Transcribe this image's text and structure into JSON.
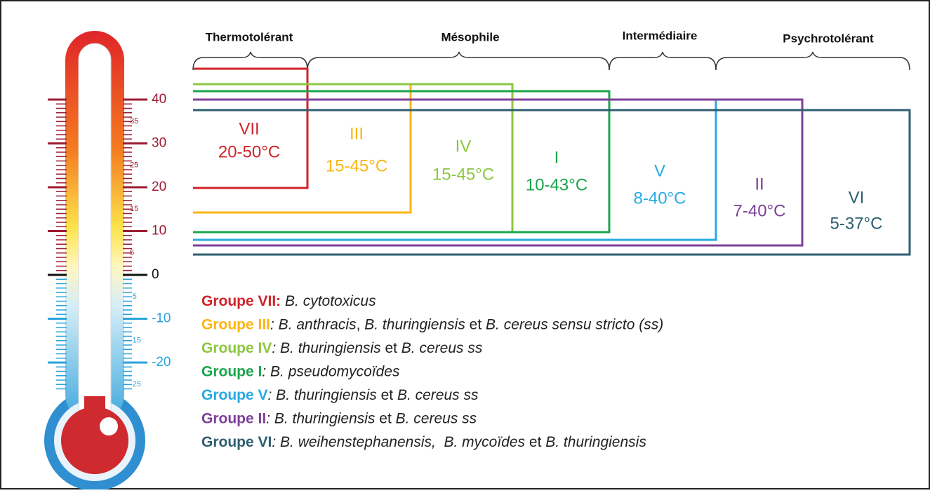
{
  "header": {
    "categories": [
      "Thermotolérant",
      "Mésophile",
      "Intermédiaire",
      "Psychrotolérant"
    ]
  },
  "thermometer": {
    "major_labels": [
      "40",
      "30",
      "20",
      "10",
      "0",
      "-10",
      "-20"
    ],
    "minor_labels": [
      "35",
      "25",
      "15",
      "5",
      "-5",
      "-15",
      "-25"
    ]
  },
  "groups": [
    {
      "numeral": "VII",
      "range": "20-50°C",
      "color": "#d2232a"
    },
    {
      "numeral": "III",
      "range": "15-45°C",
      "color": "#fbb515"
    },
    {
      "numeral": "IV",
      "range": "15-45°C",
      "color": "#8dc63f"
    },
    {
      "numeral": "I",
      "range": "10-43°C",
      "color": "#1aa54b"
    },
    {
      "numeral": "V",
      "range": "8-40°C",
      "color": "#27aae1"
    },
    {
      "numeral": "II",
      "range": "7-40°C",
      "color": "#7e3f98"
    },
    {
      "numeral": "VI",
      "range": "5-37°C",
      "color": "#2e5e70"
    }
  ],
  "legend": [
    {
      "label": "Groupe VII:",
      "segments": [
        {
          "text": " B. cytotoxicus",
          "italic": true
        }
      ]
    },
    {
      "label": "Groupe III",
      "segments": [
        {
          "text": ": B. anthracis",
          "italic": true
        },
        {
          "text": ", ",
          "italic": false
        },
        {
          "text": "B. thuringiensis",
          "italic": true
        },
        {
          "text": " et ",
          "italic": false
        },
        {
          "text": "B. cereus sensu stricto (ss)",
          "italic": true
        }
      ]
    },
    {
      "label": "Groupe IV",
      "segments": [
        {
          "text": ": B. thuringiensis",
          "italic": true
        },
        {
          "text": " et ",
          "italic": false
        },
        {
          "text": "B. cereus ss",
          "italic": true
        }
      ]
    },
    {
      "label": "Groupe I",
      "segments": [
        {
          "text": ": B. pseudomycoïdes",
          "italic": true
        }
      ]
    },
    {
      "label": "Groupe V",
      "segments": [
        {
          "text": ": B. thuringiensis",
          "italic": true
        },
        {
          "text": " et ",
          "italic": false
        },
        {
          "text": "B. cereus ss",
          "italic": true
        }
      ]
    },
    {
      "label": "Groupe II",
      "segments": [
        {
          "text": ": B. thuringiensis",
          "italic": true
        },
        {
          "text": " et ",
          "italic": false
        },
        {
          "text": "B. cereus ss",
          "italic": true
        }
      ]
    },
    {
      "label": "Groupe VI",
      "segments": [
        {
          "text": ": B. weihenstephanensis,  B. mycoïdes",
          "italic": true
        },
        {
          "text": " et ",
          "italic": false
        },
        {
          "text": "B. thuringiensis",
          "italic": true
        }
      ]
    }
  ]
}
